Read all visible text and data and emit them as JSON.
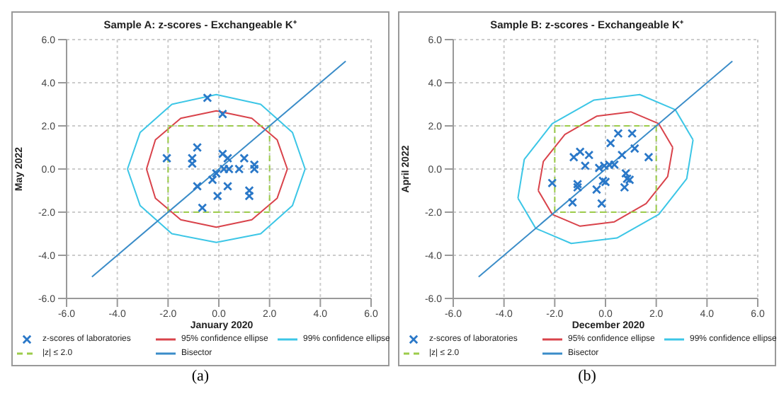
{
  "chart_data": [
    {
      "type": "scatter",
      "title": "Sample A: z-scores - Exchangeable K⁺",
      "xlabel": "January 2020",
      "ylabel": "May 2022",
      "xlim": [
        -6,
        6
      ],
      "ylim": [
        -6,
        6
      ],
      "xticks": [
        {
          "value": -6,
          "label": "-6.0"
        },
        {
          "value": -4,
          "label": "-4.0"
        },
        {
          "value": -2,
          "label": "-2.0"
        },
        {
          "value": 0,
          "label": "0.0"
        },
        {
          "value": 2,
          "label": "2.0"
        },
        {
          "value": 4,
          "label": "4.0"
        },
        {
          "value": 6,
          "label": "6.0"
        }
      ],
      "yticks": [
        {
          "value": -6,
          "label": "-6.0"
        },
        {
          "value": -4,
          "label": "-4.0"
        },
        {
          "value": -2,
          "label": "-2.0"
        },
        {
          "value": 0,
          "label": "0.0"
        },
        {
          "value": 2,
          "label": "2.0"
        },
        {
          "value": 4,
          "label": "4.0"
        },
        {
          "value": 6,
          "label": "6.0"
        }
      ],
      "grid": true,
      "legend": "bottom",
      "annotations": [
        "(a)"
      ],
      "series": [
        {
          "name": "z-scores of laboratories",
          "type": "scatter",
          "marker": "cross",
          "color": "#2a78c8",
          "x": [
            -0.45,
            0.15,
            -2.05,
            -0.85,
            -1.05,
            -1.05,
            -0.85,
            0.15,
            0.35,
            1.0,
            1.4,
            1.4,
            0.2,
            0.4,
            0.8,
            -0.1,
            -0.25,
            0.35,
            1.2,
            1.2,
            -0.05,
            -0.65
          ],
          "values": [
            3.3,
            2.55,
            0.5,
            1.0,
            0.5,
            0.25,
            -0.8,
            0.7,
            0.5,
            0.5,
            0.2,
            0.0,
            0.0,
            0.0,
            0.0,
            -0.2,
            -0.5,
            -0.8,
            -1.0,
            -1.25,
            -1.25,
            -1.8
          ]
        },
        {
          "name": "95% confidence ellipse",
          "type": "line",
          "color": "#d9434b",
          "x": [
            2.7,
            2.3,
            1.3,
            -0.1,
            -1.5,
            -2.5,
            -2.85,
            -2.5,
            -1.5,
            -0.1,
            1.3,
            2.3,
            2.7
          ],
          "values": [
            0,
            1.35,
            2.35,
            2.7,
            2.35,
            1.35,
            0,
            -1.35,
            -2.35,
            -2.7,
            -2.35,
            -1.35,
            0
          ]
        },
        {
          "name": "99% confidence ellipse",
          "type": "line",
          "color": "#3cc6e6",
          "x": [
            3.4,
            2.9,
            1.65,
            -0.1,
            -1.85,
            -3.1,
            -3.6,
            -3.1,
            -1.85,
            -0.1,
            1.65,
            2.9,
            3.4
          ],
          "values": [
            0,
            1.7,
            3.0,
            3.45,
            3.0,
            1.7,
            0,
            -1.7,
            -3.0,
            -3.4,
            -3.0,
            -1.7,
            0
          ]
        },
        {
          "name": "|z| ≤ 2.0",
          "type": "line",
          "color": "#9ccc4a",
          "line_style": "dashed",
          "x": [
            0,
            -2,
            -2,
            2,
            2,
            0
          ],
          "values": [
            -2,
            -2,
            2,
            2,
            -2,
            -2
          ]
        },
        {
          "name": "Bisector",
          "type": "line",
          "color": "#3a8cc8",
          "x": [
            -5,
            5
          ],
          "values": [
            -5,
            5
          ]
        }
      ]
    },
    {
      "type": "scatter",
      "title": "Sample B: z-scores - Exchangeable K⁺",
      "xlabel": "December 2020",
      "ylabel": "April 2022",
      "xlim": [
        -6,
        6
      ],
      "ylim": [
        -6,
        6
      ],
      "xticks": [
        {
          "value": -6,
          "label": "-6.0"
        },
        {
          "value": -4,
          "label": "-4.0"
        },
        {
          "value": -2,
          "label": "-2.0"
        },
        {
          "value": 0,
          "label": "0.0"
        },
        {
          "value": 2,
          "label": "2.0"
        },
        {
          "value": 4,
          "label": "4.0"
        },
        {
          "value": 6,
          "label": "6.0"
        }
      ],
      "yticks": [
        {
          "value": -6,
          "label": "-6.0"
        },
        {
          "value": -4,
          "label": "-4.0"
        },
        {
          "value": -2,
          "label": "-2.0"
        },
        {
          "value": 0,
          "label": "0.0"
        },
        {
          "value": 2,
          "label": "2.0"
        },
        {
          "value": 4,
          "label": "4.0"
        },
        {
          "value": 6,
          "label": "6.0"
        }
      ],
      "grid": true,
      "legend": "bottom",
      "annotations": [
        "(b)"
      ],
      "series": [
        {
          "name": "z-scores of laboratories",
          "type": "scatter",
          "marker": "cross",
          "color": "#2a78c8",
          "x": [
            0.5,
            1.05,
            0.2,
            1.15,
            -1.0,
            -0.65,
            -1.25,
            0.65,
            1.7,
            -0.8,
            -0.25,
            -0.05,
            0.15,
            0.35,
            -0.1,
            0.0,
            0.8,
            0.85,
            0.95,
            0.75,
            -0.35,
            -1.1,
            -1.1,
            -2.1,
            -1.3,
            -0.15
          ],
          "values": [
            1.65,
            1.65,
            1.2,
            0.95,
            0.8,
            0.65,
            0.55,
            0.65,
            0.55,
            0.15,
            0.05,
            0.15,
            0.2,
            0.2,
            -0.55,
            -0.6,
            -0.2,
            -0.45,
            -0.5,
            -0.85,
            -0.95,
            -0.7,
            -0.85,
            -0.65,
            -1.55,
            -1.6
          ]
        },
        {
          "name": "95% confidence ellipse",
          "type": "line",
          "color": "#d9434b",
          "x": [
            2.1,
            1.0,
            -0.35,
            -1.6,
            -2.45,
            -2.65,
            -2.1,
            -1.0,
            0.35,
            1.6,
            2.45,
            2.65,
            2.1
          ],
          "values": [
            2.1,
            2.65,
            2.45,
            1.6,
            0.35,
            -1.0,
            -2.1,
            -2.65,
            -2.45,
            -1.6,
            -0.35,
            1.0,
            2.1
          ]
        },
        {
          "name": "99% confidence ellipse",
          "type": "line",
          "color": "#3cc6e6",
          "x": [
            2.75,
            1.35,
            -0.45,
            -2.1,
            -3.2,
            -3.45,
            -2.75,
            -1.35,
            0.45,
            2.1,
            3.2,
            3.45,
            2.75
          ],
          "values": [
            2.75,
            3.45,
            3.2,
            2.1,
            0.45,
            -1.35,
            -2.75,
            -3.45,
            -3.2,
            -2.1,
            -0.45,
            1.35,
            2.75
          ]
        },
        {
          "name": "|z| ≤ 2.0",
          "type": "line",
          "color": "#9ccc4a",
          "line_style": "dashed",
          "x": [
            0,
            -2,
            -2,
            2,
            2,
            0
          ],
          "values": [
            -2,
            -2,
            2,
            2,
            -2,
            -2
          ]
        },
        {
          "name": "Bisector",
          "type": "line",
          "color": "#3a8cc8",
          "x": [
            -5,
            5
          ],
          "values": [
            -5,
            5
          ]
        }
      ]
    }
  ]
}
